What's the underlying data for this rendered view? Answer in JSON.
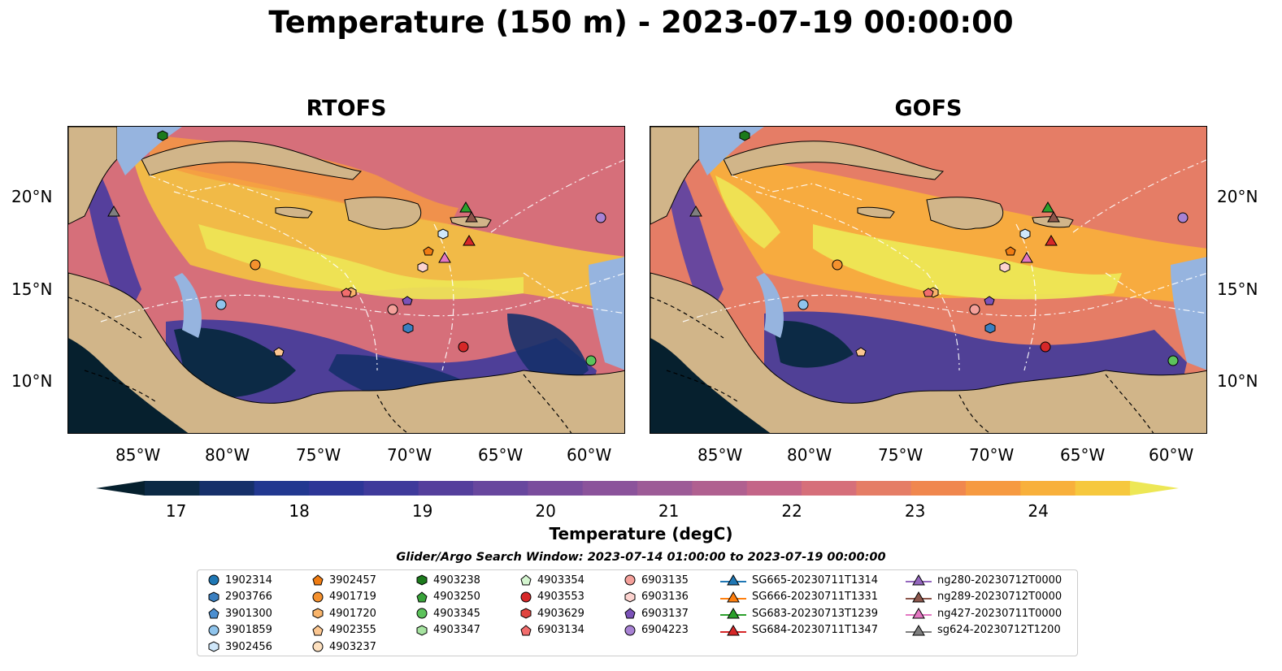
{
  "title": "Temperature (150 m) - 2023-07-19 00:00:00",
  "panels": [
    {
      "title": "RTOFS"
    },
    {
      "title": "GOFS"
    }
  ],
  "axes": {
    "lat_ticks": [
      "20°N",
      "15°N",
      "10°N"
    ],
    "lon_ticks": [
      "85°W",
      "80°W",
      "75°W",
      "70°W",
      "65°W",
      "60°W"
    ]
  },
  "colorbar": {
    "label": "Temperature (degC)",
    "ticks": [
      "17",
      "18",
      "19",
      "20",
      "21",
      "22",
      "23",
      "24"
    ],
    "min": 16.75,
    "max": 24.75,
    "colors": [
      "#06202e",
      "#0c2a45",
      "#16306a",
      "#223890",
      "#2d3697",
      "#3f3a9b",
      "#553f9c",
      "#68479e",
      "#7a4d9d",
      "#8b539b",
      "#9d5b97",
      "#b06090",
      "#c46588",
      "#d66f7a",
      "#e57d66",
      "#f0874e",
      "#f69a41",
      "#f8b03b",
      "#f6c83e",
      "#ede755"
    ]
  },
  "search_window": "Glider/Argo Search Window: 2023-07-14 01:00:00 to 2023-07-19 00:00:00",
  "legend": [
    {
      "label": "1902314",
      "marker": "circle",
      "color": "#1f77b4"
    },
    {
      "label": "2903766",
      "marker": "hexagon",
      "color": "#3a7fc0"
    },
    {
      "label": "3901300",
      "marker": "pentagon",
      "color": "#4c8fd0"
    },
    {
      "label": "3901859",
      "marker": "circle",
      "color": "#8fc4ec"
    },
    {
      "label": "3902456",
      "marker": "hexagon",
      "color": "#cfe7fa"
    },
    {
      "label": "3902457",
      "marker": "pentagon",
      "color": "#f07c12"
    },
    {
      "label": "4901719",
      "marker": "circle",
      "color": "#f5912e"
    },
    {
      "label": "4901720",
      "marker": "hexagon",
      "color": "#f9b46a"
    },
    {
      "label": "4902355",
      "marker": "pentagon",
      "color": "#fbc690"
    },
    {
      "label": "4903237",
      "marker": "circle",
      "color": "#fde0bf"
    },
    {
      "label": "4903238",
      "marker": "hexagon",
      "color": "#1c7a1c"
    },
    {
      "label": "4903250",
      "marker": "pentagon",
      "color": "#39a33a"
    },
    {
      "label": "4903345",
      "marker": "circle",
      "color": "#5cc25b"
    },
    {
      "label": "4903347",
      "marker": "hexagon",
      "color": "#a6e3a0"
    },
    {
      "label": "4903354",
      "marker": "pentagon",
      "color": "#d4f5cf"
    },
    {
      "label": "4903553",
      "marker": "circle",
      "color": "#d62728"
    },
    {
      "label": "4903629",
      "marker": "hexagon",
      "color": "#e0443f"
    },
    {
      "label": "6903134",
      "marker": "pentagon",
      "color": "#f26d6d"
    },
    {
      "label": "6903135",
      "marker": "circle",
      "color": "#f4a09a"
    },
    {
      "label": "6903136",
      "marker": "hexagon",
      "color": "#fcd3cf"
    },
    {
      "label": "6903137",
      "marker": "pentagon",
      "color": "#7b52b8"
    },
    {
      "label": "6904223",
      "marker": "circle",
      "color": "#a882d4"
    },
    {
      "label": "SG665-20230711T1314",
      "marker": "triangle",
      "color": "#1f77b4"
    },
    {
      "label": "SG666-20230711T1331",
      "marker": "triangle",
      "color": "#ff7f0e"
    },
    {
      "label": "SG683-20230713T1239",
      "marker": "triangle",
      "color": "#2ca02c"
    },
    {
      "label": "SG684-20230711T1347",
      "marker": "triangle",
      "color": "#d62728"
    },
    {
      "label": "ng280-20230712T0000",
      "marker": "triangle",
      "color": "#9467bd"
    },
    {
      "label": "ng289-20230712T0000",
      "marker": "triangle",
      "color": "#8c564b"
    },
    {
      "label": "ng427-20230711T0000",
      "marker": "triangle",
      "color": "#e377c2"
    },
    {
      "label": "sg624-20230712T1200",
      "marker": "triangle",
      "color": "#7f7f7f"
    }
  ],
  "map_colors": {
    "land": "#d1b589",
    "shelf": "#96b4df",
    "border": "#000000"
  }
}
